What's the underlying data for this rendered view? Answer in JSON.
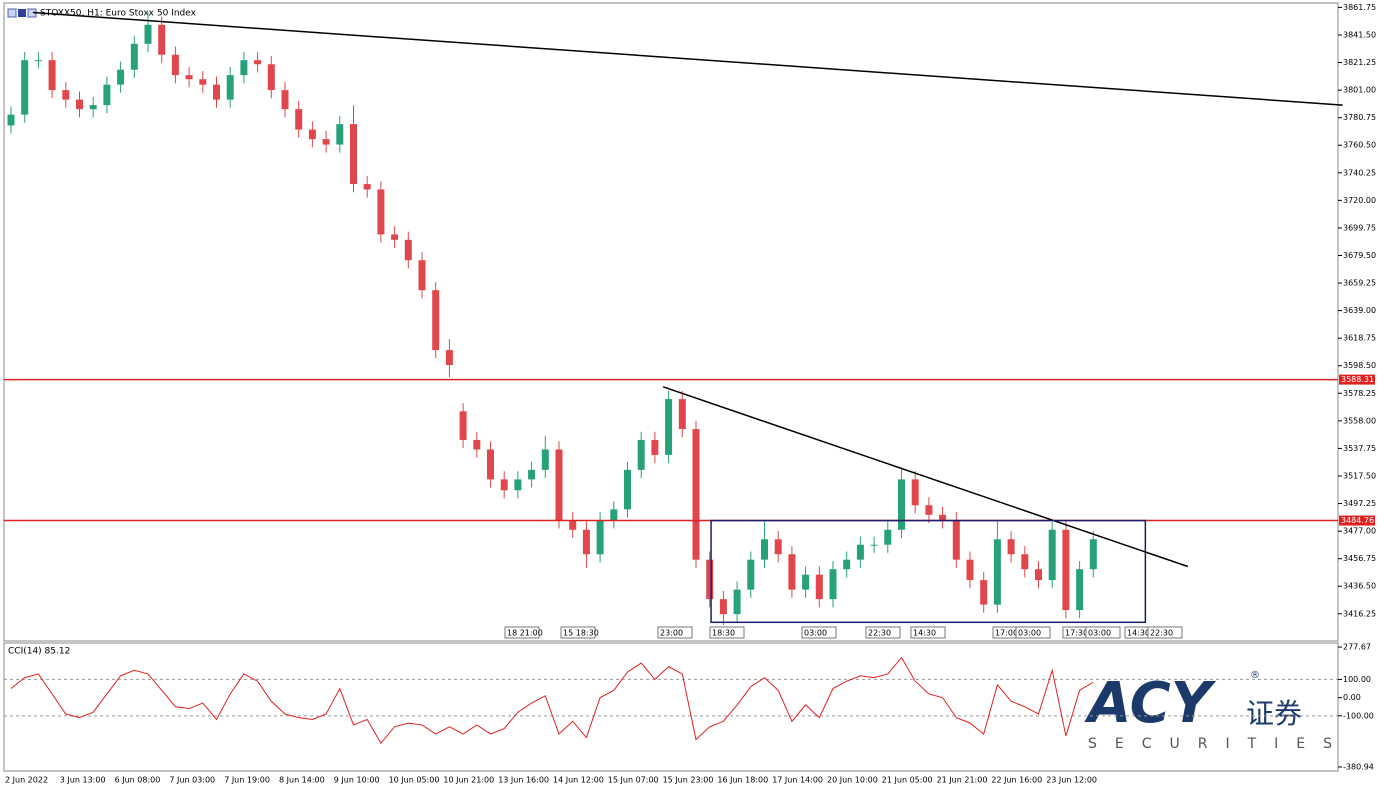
{
  "chart_data": [
    {
      "type": "candlestick",
      "title": "STOXX50, H1:  Euro Stoxx 50 Index",
      "categories": [
        "2 Jun 2022",
        null,
        null,
        null,
        "3 Jun 13:00",
        null,
        null,
        null,
        "6 Jun 08:00",
        null,
        null,
        null,
        "7 Jun 03:00",
        null,
        null,
        null,
        "7 Jun 19:00",
        null,
        null,
        null,
        "8 Jun 14:00",
        null,
        null,
        null,
        "9 Jun 10:00",
        null,
        null,
        null,
        "10 Jun 05:00",
        null,
        null,
        null,
        "10 Jun 21:00",
        null,
        null,
        null,
        "13 Jun 16:00",
        null,
        null,
        null,
        "14 Jun 12:00",
        null,
        null,
        null,
        "15 Jun 07:00",
        null,
        null,
        null,
        "15 Jun 23:00",
        null,
        null,
        null,
        "16 Jun 18:00",
        null,
        null,
        null,
        "17 Jun 14:00",
        null,
        null,
        null,
        "20 Jun 10:00",
        null,
        null,
        null,
        "21 Jun 05:00",
        null,
        null,
        null,
        "21 Jun 21:00",
        null,
        null,
        null,
        "22 Jun 16:00",
        null,
        null,
        null,
        "23 Jun 12:00",
        null,
        null,
        null
      ],
      "open": [
        3775,
        3783,
        3823,
        3823,
        3801,
        3794,
        3787,
        3790,
        3805,
        3816,
        3835,
        3849,
        3827,
        3812,
        3809,
        3805,
        3794,
        3812,
        3823,
        3820,
        3801,
        3787,
        3772,
        3765,
        3761,
        3776,
        3732,
        3728,
        3695,
        3691,
        3676,
        3654,
        3610,
        3565,
        3544,
        3537,
        3515,
        3507,
        3515,
        3522,
        3537,
        3485,
        3478,
        3460,
        3485,
        3493,
        3522,
        3544,
        3533,
        3574,
        3552,
        3456,
        3427,
        3416,
        3434,
        3456,
        3471,
        3460,
        3434,
        3445,
        3427,
        3449,
        3456,
        3467,
        3467,
        3478,
        3515,
        3496,
        3489,
        3485,
        3456,
        3441,
        3423,
        3471,
        3460,
        3449,
        3441,
        3478,
        3419,
        3449
      ],
      "high": [
        3789,
        3829,
        3829,
        3829,
        3807,
        3800,
        3796,
        3811,
        3822,
        3841,
        3858,
        3855,
        3833,
        3818,
        3815,
        3811,
        3818,
        3829,
        3829,
        3826,
        3807,
        3793,
        3778,
        3771,
        3782,
        3790,
        3738,
        3734,
        3701,
        3697,
        3682,
        3660,
        3618,
        3571,
        3550,
        3543,
        3521,
        3521,
        3528,
        3547,
        3543,
        3491,
        3484,
        3491,
        3499,
        3528,
        3550,
        3550,
        3580,
        3580,
        3558,
        3462,
        3433,
        3440,
        3462,
        3484,
        3477,
        3466,
        3451,
        3451,
        3455,
        3462,
        3473,
        3473,
        3484,
        3524,
        3521,
        3502,
        3495,
        3491,
        3462,
        3447,
        3484,
        3477,
        3466,
        3455,
        3484,
        3484,
        3455,
        3477
      ],
      "low": [
        3769,
        3777,
        3817,
        3795,
        3788,
        3781,
        3781,
        3784,
        3799,
        3810,
        3829,
        3821,
        3806,
        3803,
        3799,
        3788,
        3788,
        3806,
        3814,
        3795,
        3781,
        3766,
        3759,
        3755,
        3755,
        3726,
        3722,
        3689,
        3685,
        3670,
        3648,
        3604,
        3590,
        3538,
        3531,
        3509,
        3501,
        3501,
        3509,
        3516,
        3479,
        3472,
        3450,
        3454,
        3479,
        3487,
        3516,
        3527,
        3527,
        3546,
        3450,
        3421,
        3408,
        3410,
        3428,
        3450,
        3454,
        3428,
        3428,
        3421,
        3421,
        3443,
        3450,
        3461,
        3461,
        3472,
        3490,
        3483,
        3479,
        3450,
        3435,
        3417,
        3417,
        3454,
        3443,
        3435,
        3435,
        3413,
        3413,
        3443
      ],
      "close": [
        3783,
        3823,
        3823,
        3801,
        3794,
        3787,
        3790,
        3805,
        3816,
        3835,
        3849,
        3827,
        3812,
        3809,
        3805,
        3794,
        3812,
        3823,
        3820,
        3801,
        3787,
        3772,
        3765,
        3761,
        3776,
        3732,
        3728,
        3695,
        3691,
        3676,
        3654,
        3610,
        3599,
        3544,
        3537,
        3515,
        3507,
        3515,
        3522,
        3537,
        3485,
        3478,
        3460,
        3485,
        3493,
        3522,
        3544,
        3533,
        3574,
        3552,
        3456,
        3427,
        3416,
        3434,
        3456,
        3471,
        3460,
        3434,
        3445,
        3427,
        3449,
        3456,
        3467,
        3467,
        3478,
        3515,
        3496,
        3489,
        3485,
        3456,
        3441,
        3423,
        3471,
        3460,
        3449,
        3441,
        3478,
        3419,
        3449,
        3471
      ],
      "up_color": "#26a17a",
      "down_color": "#e0474c",
      "ylim": [
        3397,
        3865
      ],
      "yticks": [
        3861.75,
        {
          "value": 3841.5,
          "label": "3841.50"
        },
        3821.25,
        {
          "value": 3801,
          "label": "3801.00"
        },
        3780.75,
        {
          "value": 3760.5,
          "label": "3760.50"
        },
        3740.25,
        {
          "value": 3720,
          "label": "3720.00"
        },
        3699.75,
        {
          "value": 3679.5,
          "label": "3679.50"
        },
        3659.25,
        {
          "value": 3639,
          "label": "3639.00"
        },
        3618.75,
        {
          "value": 3598.5,
          "label": "3598.50"
        },
        3578.25,
        {
          "value": 3558,
          "label": "3558.00"
        },
        3537.75,
        {
          "value": 3517.5,
          "label": "3517.50"
        },
        3497.25,
        {
          "value": 3477,
          "label": "3477.00"
        },
        3456.75,
        {
          "value": 3436.5,
          "label": "3436.50"
        },
        3416.25
      ],
      "hlines": [
        3588.31,
        3484.76
      ],
      "hline_color": "#e02020",
      "trendlines": [
        {
          "x": [
            1.6,
            97.2
          ],
          "y": [
            3858,
            3790
          ]
        },
        {
          "x": [
            47.6,
            85.9
          ],
          "y": [
            3583,
            3451
          ]
        }
      ],
      "box": {
        "x": [
          51.1,
          82.8
        ],
        "y": [
          3410,
          3484.76
        ]
      },
      "time_markers": [
        "18 21:00",
        "15 18:30",
        "23:00",
        "18:30",
        "03:00",
        "22:30",
        "14:30",
        "17:00",
        "03:00",
        "17:30",
        "03:00",
        "14:30",
        "22:30"
      ]
    },
    {
      "type": "line",
      "title": "CCI(14) 85.12",
      "color": "#e02020",
      "values": [
        50,
        110,
        130,
        20,
        -90,
        -110,
        -80,
        20,
        120,
        150,
        130,
        40,
        -50,
        -60,
        -30,
        -120,
        20,
        130,
        90,
        -20,
        -90,
        -110,
        -120,
        -90,
        50,
        -150,
        -120,
        -250,
        -160,
        -140,
        -150,
        -200,
        -160,
        -200,
        -150,
        -200,
        -170,
        -80,
        -30,
        10,
        -200,
        -130,
        -220,
        0,
        40,
        140,
        190,
        100,
        170,
        130,
        -230,
        -160,
        -130,
        -40,
        60,
        110,
        40,
        -130,
        -40,
        -110,
        50,
        90,
        120,
        110,
        130,
        220,
        90,
        20,
        0,
        -110,
        -140,
        -200,
        70,
        -20,
        -50,
        -90,
        150,
        -210,
        40,
        85.12
      ],
      "ylim": [
        -403,
        300
      ],
      "yticks": [
        277.67,
        {
          "value": 100,
          "label": "100.00"
        },
        {
          "value": 0,
          "label": "0.00"
        },
        {
          "value": -100,
          "label": "-100.00"
        },
        -380.94
      ],
      "levels": [
        100,
        -100
      ]
    }
  ],
  "logo": {
    "brand": "ACY",
    "chinese": "证券",
    "tagline": "SECURITIES",
    "mark": "®"
  }
}
